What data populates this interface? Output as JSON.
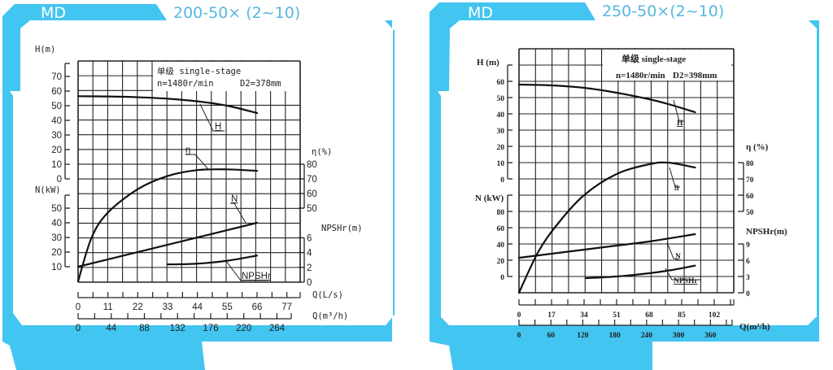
{
  "colors": {
    "frame": "#42c5f0",
    "title": "#55b8e0",
    "grid": "#222222",
    "curve": "#111111"
  },
  "chart_data": [
    {
      "type": "line",
      "tab_label": "MD",
      "title": "200-50× (2~10)",
      "info_line1": "单级 single-stage",
      "info_line2_speed": "n=1480r/min",
      "info_line2_diameter": "D2=378mm",
      "xlabel_ls": "Q(L/s)",
      "xlabel_m3h": "Q(m³/h)",
      "x_ticks_ls": [
        0,
        11,
        22,
        33,
        44,
        55,
        66,
        77
      ],
      "x_ticks_m3h": [
        0,
        44,
        88,
        132,
        176,
        220,
        264
      ],
      "axes": {
        "H": {
          "label": "H(m)",
          "ticks": [
            0,
            10,
            20,
            30,
            40,
            50,
            60,
            70
          ]
        },
        "N": {
          "label": "N(kW)",
          "ticks": [
            10,
            20,
            30,
            40,
            50
          ]
        },
        "eta": {
          "label": "η(%)",
          "ticks": [
            50,
            60,
            70,
            80
          ]
        },
        "NPSHr": {
          "label": "NPSHr(m)",
          "ticks": [
            0,
            2,
            4,
            6
          ]
        }
      },
      "series": [
        {
          "name": "H",
          "unit": "m",
          "x": [
            0,
            11,
            22,
            33,
            44,
            55,
            66
          ],
          "values": [
            56.5,
            56.3,
            55.8,
            54.8,
            53,
            50,
            45
          ]
        },
        {
          "name": "η",
          "unit": "%",
          "x": [
            0,
            5,
            11,
            22,
            33,
            44,
            55,
            66
          ],
          "values": [
            0,
            30,
            47,
            63,
            72,
            76,
            76.5,
            75.5
          ]
        },
        {
          "name": "N",
          "unit": "kW",
          "x": [
            0,
            66
          ],
          "values": [
            10,
            40
          ]
        },
        {
          "name": "NPSHr",
          "unit": "m",
          "x": [
            33,
            44,
            55,
            66
          ],
          "values": [
            2.4,
            2.5,
            2.9,
            3.6
          ]
        }
      ],
      "curve_labels": [
        "H",
        "η",
        "N",
        "NPSHr"
      ]
    },
    {
      "type": "line",
      "tab_label": "MD",
      "title": "250-50×(2~10)",
      "info_line1": "单级 single-stage",
      "info_line2_speed": "n=1480r/min",
      "info_line2_diameter": "D2=398mm",
      "xlabel_ls": "",
      "xlabel_m3h": "Q(m³/h)",
      "x_ticks_ls": [
        0,
        17,
        34,
        51,
        68,
        85,
        102
      ],
      "x_ticks_m3h": [
        0,
        60,
        120,
        180,
        240,
        300,
        360
      ],
      "axes": {
        "H": {
          "label": "H (m)",
          "ticks": [
            0,
            10,
            20,
            30,
            40,
            50,
            60
          ]
        },
        "N": {
          "label": "N (kW)",
          "ticks": [
            0,
            20,
            40,
            60,
            80
          ]
        },
        "eta": {
          "label": "η (%)",
          "ticks": [
            50,
            60,
            70,
            80
          ]
        },
        "NPSHr": {
          "label": "NPSHr(m)",
          "ticks": [
            0,
            3,
            6,
            9
          ]
        }
      },
      "series": [
        {
          "name": "H",
          "unit": "m",
          "x": [
            0,
            17,
            34,
            51,
            68,
            78,
            92
          ],
          "values": [
            58,
            57.5,
            56,
            53,
            49,
            46,
            41
          ]
        },
        {
          "name": "η",
          "unit": "%",
          "x": [
            0,
            10,
            20,
            34,
            51,
            68,
            78,
            92
          ],
          "values": [
            0,
            25,
            42,
            60,
            73,
            79,
            80,
            77
          ]
        },
        {
          "name": "N",
          "unit": "kW",
          "x": [
            0,
            17,
            34,
            51,
            68,
            92
          ],
          "values": [
            23,
            28,
            33,
            38,
            43,
            52
          ]
        },
        {
          "name": "NPSHr",
          "unit": "m",
          "x": [
            35,
            51,
            68,
            80,
            92
          ],
          "values": [
            2.7,
            3,
            3.6,
            4.2,
            5
          ]
        }
      ],
      "curve_labels": [
        "H",
        "η",
        "N",
        "NPSHr"
      ]
    }
  ]
}
